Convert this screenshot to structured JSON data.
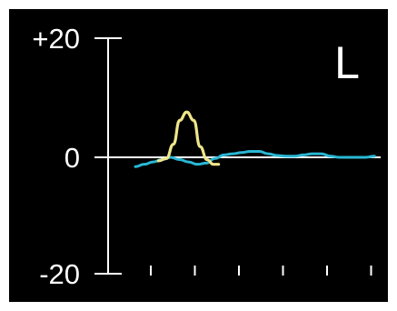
{
  "chart_data": {
    "type": "line",
    "channel_label": "L",
    "title": "",
    "xlabel": "",
    "ylabel": "",
    "ylim": [
      -20,
      20
    ],
    "y_ticks": [
      {
        "value": 20,
        "label": "+20"
      },
      {
        "value": 0,
        "label": "0"
      },
      {
        "value": -20,
        "label": "-20"
      }
    ],
    "x_tick_count": 6,
    "grid": false,
    "legend": "none",
    "colors": {
      "background": "#000000",
      "axis": "#ffffff",
      "text": "#ffffff",
      "waveform": "#2ab7d4",
      "highlight": "#efe58a"
    },
    "series": [
      {
        "color_key": "waveform",
        "x": [
          0,
          1,
          2,
          3,
          4,
          5,
          6,
          7,
          8,
          9,
          10,
          11,
          12,
          13,
          14,
          15,
          16,
          17,
          18,
          19,
          20,
          21,
          22,
          23,
          24,
          25,
          26,
          27
        ],
        "y": [
          -1.6,
          -1.2,
          -0.8,
          -0.4,
          0,
          -0.4,
          -0.8,
          -1.2,
          -1.0,
          -0.2,
          0.4,
          0.6,
          0.8,
          1.0,
          1.0,
          0.6,
          0.3,
          0.2,
          0.2,
          0.4,
          0.6,
          0.6,
          0.2,
          0,
          0,
          0,
          0,
          0.2
        ]
      },
      {
        "color_key": "highlight",
        "x": [
          2.6,
          3.5,
          4.3,
          5,
          5.8,
          6.6,
          7.3,
          8.1,
          8.8,
          9.4
        ],
        "y": [
          -0.6,
          -0.2,
          2.2,
          6.2,
          7.6,
          6.2,
          1.8,
          -0.4,
          -1.2,
          -1.2
        ]
      }
    ]
  }
}
